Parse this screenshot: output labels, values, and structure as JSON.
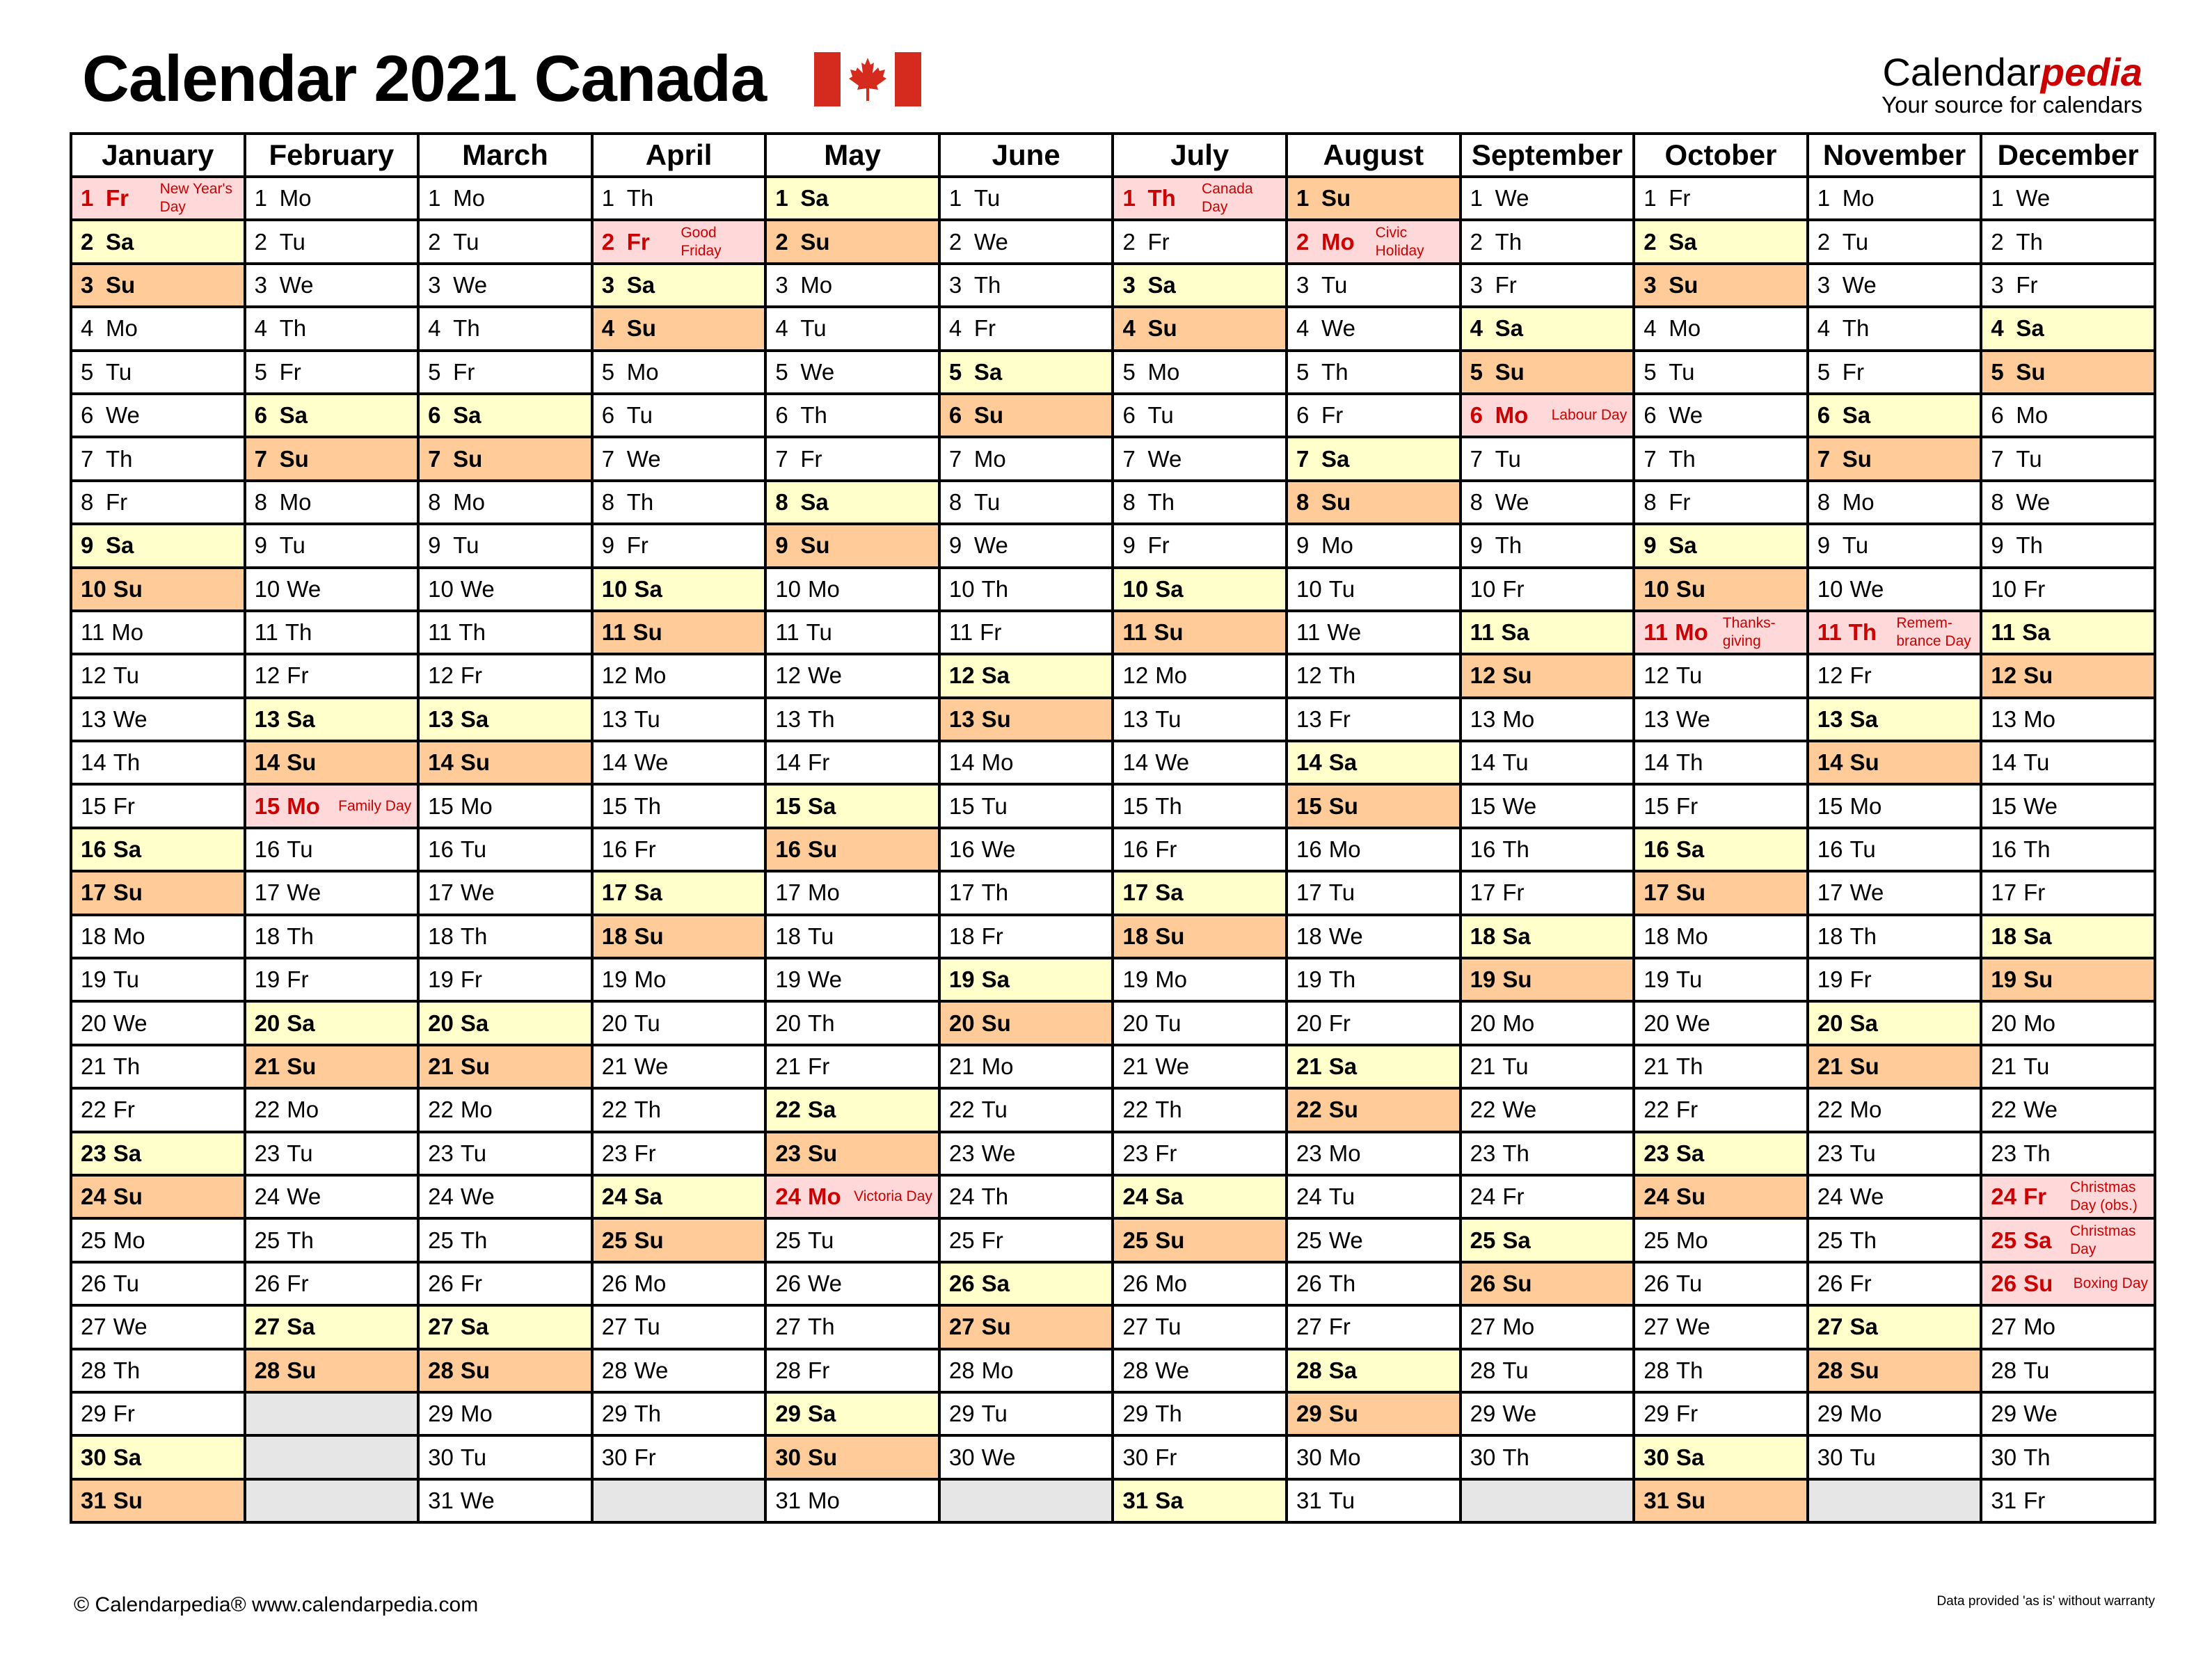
{
  "header": {
    "title": "Calendar 2021 Canada",
    "flag_icon": "canada-flag-icon",
    "brand_main": "Calendar",
    "brand_accent": "pedia",
    "brand_tagline": "Your source for calendars"
  },
  "colors": {
    "saturday": "#ffffcc",
    "sunday": "#ffcc99",
    "holiday": "#ffd9d9",
    "holiday_text": "#cc0000",
    "empty": "#e6e6e6",
    "flag_red": "#d52b1e"
  },
  "months": [
    {
      "name": "January",
      "start": 5,
      "days": 31,
      "holidays": {
        "1": "New Year's Day"
      }
    },
    {
      "name": "February",
      "start": 1,
      "days": 28,
      "holidays": {
        "15": "Family Day"
      }
    },
    {
      "name": "March",
      "start": 1,
      "days": 31,
      "holidays": {}
    },
    {
      "name": "April",
      "start": 4,
      "days": 30,
      "holidays": {
        "2": "Good Friday"
      }
    },
    {
      "name": "May",
      "start": 6,
      "days": 31,
      "holidays": {
        "24": "Victoria Day"
      }
    },
    {
      "name": "June",
      "start": 2,
      "days": 30,
      "holidays": {}
    },
    {
      "name": "July",
      "start": 4,
      "days": 31,
      "holidays": {
        "1": "Canada Day"
      }
    },
    {
      "name": "August",
      "start": 0,
      "days": 31,
      "holidays": {
        "2": "Civic Holiday"
      }
    },
    {
      "name": "September",
      "start": 3,
      "days": 30,
      "holidays": {
        "6": "Labour Day"
      }
    },
    {
      "name": "October",
      "start": 5,
      "days": 31,
      "holidays": {
        "11": "Thanks-giving"
      }
    },
    {
      "name": "November",
      "start": 1,
      "days": 30,
      "holidays": {
        "11": "Remem-brance Day"
      }
    },
    {
      "name": "December",
      "start": 3,
      "days": 31,
      "holidays": {
        "24": "Christmas Day (obs.)",
        "25": "Christmas Day",
        "26": "Boxing Day"
      }
    }
  ],
  "weekday_abbr": [
    "Su",
    "Mo",
    "Tu",
    "We",
    "Th",
    "Fr",
    "Sa"
  ],
  "footer": {
    "copyright": "© Calendarpedia®   www.calendarpedia.com",
    "disclaimer": "Data provided 'as is' without warranty"
  }
}
